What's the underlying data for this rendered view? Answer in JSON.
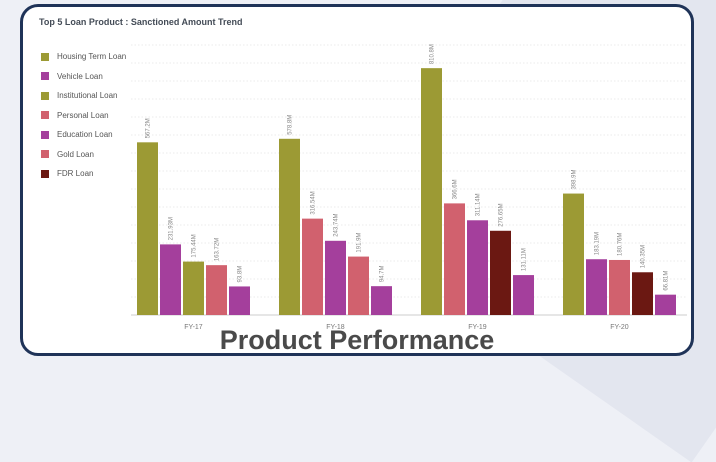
{
  "banner": {
    "text": "Product Performance"
  },
  "chart_data": {
    "type": "bar",
    "title": "Top 5 Loan Product : Sanctioned Amount Trend",
    "categories": [
      "FY-17",
      "FY-18",
      "FY-19",
      "FY-20"
    ],
    "legend_position": "left",
    "grid": true,
    "ylim": [
      0,
      900
    ],
    "series": [
      {
        "name": "Housing Term Loan",
        "color": "#9c9a34"
      },
      {
        "name": "Vehicle Loan",
        "color": "#a43f9c"
      },
      {
        "name": "Institutional Loan",
        "color": "#9c9a34"
      },
      {
        "name": "Personal Loan",
        "color": "#d1616e"
      },
      {
        "name": "Education Loan",
        "color": "#a43f9c"
      },
      {
        "name": "Gold Loan",
        "color": "#d1616e"
      },
      {
        "name": "FDR Loan",
        "color": "#6b1812"
      }
    ],
    "groups": [
      {
        "category": "FY-17",
        "bars": [
          {
            "series": "Housing Term Loan",
            "value": 567.2,
            "label": "567.2M"
          },
          {
            "series": "Vehicle Loan",
            "value": 231.93,
            "label": "231.93M"
          },
          {
            "series": "Institutional Loan",
            "value": 175.44,
            "label": "175.44M"
          },
          {
            "series": "Personal Loan",
            "value": 163.72,
            "label": "163.72M"
          },
          {
            "series": "Education Loan",
            "value": 93.8,
            "label": "93.8M"
          }
        ]
      },
      {
        "category": "FY-18",
        "bars": [
          {
            "series": "Housing Term Loan",
            "value": 578.8,
            "label": "578.8M"
          },
          {
            "series": "Personal Loan",
            "value": 316.54,
            "label": "316.54M"
          },
          {
            "series": "Vehicle Loan",
            "value": 243.74,
            "label": "243.74M"
          },
          {
            "series": "Gold Loan",
            "value": 191.9,
            "label": "191.9M"
          },
          {
            "series": "Education Loan",
            "value": 94.7,
            "label": "94.7M"
          }
        ]
      },
      {
        "category": "FY-19",
        "bars": [
          {
            "series": "Housing Term Loan",
            "value": 810.8,
            "label": "810.8M"
          },
          {
            "series": "Personal Loan",
            "value": 366.6,
            "label": "366.6M"
          },
          {
            "series": "Vehicle Loan",
            "value": 311.14,
            "label": "311.14M"
          },
          {
            "series": "FDR Loan",
            "value": 276.65,
            "label": "276.65M"
          },
          {
            "series": "Education Loan",
            "value": 131.11,
            "label": "131.11M"
          }
        ]
      },
      {
        "category": "FY-20",
        "bars": [
          {
            "series": "Housing Term Loan",
            "value": 398.9,
            "label": "398.9M"
          },
          {
            "series": "Vehicle Loan",
            "value": 183.19,
            "label": "183.19M"
          },
          {
            "series": "Personal Loan",
            "value": 180.76,
            "label": "180.76M"
          },
          {
            "series": "FDR Loan",
            "value": 140.35,
            "label": "140.35M"
          },
          {
            "series": "Education Loan",
            "value": 66.81,
            "label": "66.81M"
          }
        ]
      }
    ]
  }
}
